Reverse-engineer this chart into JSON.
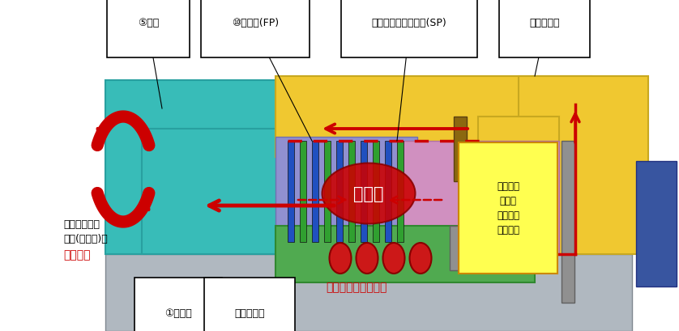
{
  "bg": "#ffffff",
  "labels": {
    "gear": "⑤歯車",
    "fp": "⑩摩擦板(FP)",
    "sp": "⑰スチールプレート(SP)",
    "piston_top": "⑪ピストン",
    "input": "①入力部",
    "spring": "⑬戻しバネ",
    "power1": "動力が伝わり",
    "power2": "歯車(出力部)も",
    "power3": "回転する",
    "engine_flow": "エンジン動力の流れ",
    "mitsuchaku": "密　着",
    "pn1": "ピストン",
    "pn2": "へ油圧",
    "pn3": "が作用し",
    "pn4": "スライド"
  },
  "colors": {
    "yellow": "#f0c830",
    "teal": "#38bcb8",
    "purple": "#9090d0",
    "pink": "#d090c0",
    "green": "#50aa50",
    "red": "#cc0000",
    "gray_base": "#b0b8c0",
    "gray_rod": "#909090",
    "brown": "#8B6810",
    "blue_block": "#3855a0",
    "blue_plate": "#2050c0",
    "green_plate": "#30a030",
    "red_cyl": "#cc1818"
  }
}
